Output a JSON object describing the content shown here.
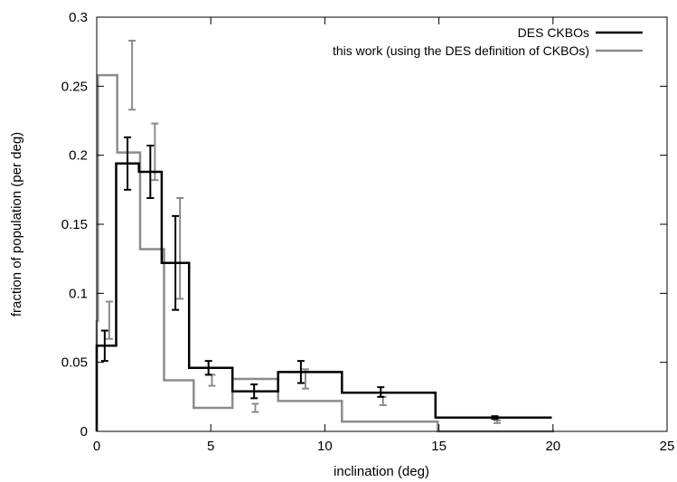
{
  "chart_data": {
    "type": "line",
    "xlabel": "inclination (deg)",
    "ylabel": "fraction of population (per deg)",
    "xlim": [
      0,
      25
    ],
    "ylim": [
      0,
      0.3
    ],
    "xticks": [
      0,
      5,
      10,
      15,
      20,
      25
    ],
    "yticks": [
      0,
      0.05,
      0.1,
      0.15,
      0.2,
      0.25,
      0.3
    ],
    "xtick_labels": [
      "0",
      "5",
      "10",
      "15",
      "20",
      "25"
    ],
    "ytick_labels": [
      "0",
      "0.05",
      "0.1",
      "0.15",
      "0.2",
      "0.25",
      "0.3"
    ],
    "grid": false,
    "legend_position": "top-right",
    "series": [
      {
        "name": "DES CKBOs",
        "color": "#000000",
        "step": "histogram",
        "bin_edges": [
          0,
          0.85,
          1.85,
          2.85,
          4.05,
          5.95,
          7.95,
          10.75,
          14.85,
          19.95
        ],
        "values": [
          0.062,
          0.194,
          0.188,
          0.122,
          0.046,
          0.029,
          0.043,
          0.028,
          0.01
        ],
        "error_x": [
          0.35,
          1.35,
          2.35,
          3.45,
          4.9,
          6.9,
          8.95,
          12.45,
          17.45
        ],
        "error_low": [
          0.051,
          0.175,
          0.169,
          0.088,
          0.041,
          0.024,
          0.035,
          0.025,
          0.009
        ],
        "error_high": [
          0.073,
          0.213,
          0.207,
          0.156,
          0.051,
          0.034,
          0.051,
          0.032,
          0.011
        ]
      },
      {
        "name": "this work (using the DES definition of CKBOs)",
        "color": "#8c8c8c",
        "step": "histogram",
        "bin_edges": [
          0,
          0.05,
          0.9,
          1.9,
          2.95,
          4.25,
          5.95,
          7.95,
          10.75,
          14.95,
          20.05
        ],
        "values": [
          0.08,
          0.258,
          0.202,
          0.132,
          0.037,
          0.017,
          0.038,
          0.022,
          0.007,
          0
        ],
        "error_x": [
          0.55,
          1.55,
          2.55,
          3.65,
          5.05,
          6.95,
          9.15,
          12.55,
          17.55
        ],
        "error_low": [
          0.067,
          0.233,
          0.182,
          0.096,
          0.033,
          0.014,
          0.031,
          0.019,
          0.006
        ],
        "error_high": [
          0.094,
          0.283,
          0.223,
          0.169,
          0.041,
          0.02,
          0.045,
          0.025,
          0.008
        ]
      }
    ]
  }
}
